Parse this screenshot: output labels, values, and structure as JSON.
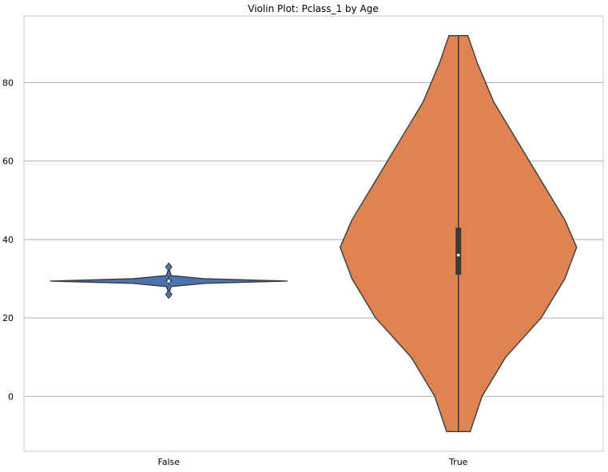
{
  "chart_data": {
    "type": "violin",
    "title": "Violin Plot: Pclass_1 by Age",
    "xlabel": "",
    "ylabel": "",
    "categories": [
      "False",
      "True"
    ],
    "ylim": [
      -14,
      97
    ],
    "yticks": [
      0,
      20,
      40,
      60,
      80
    ],
    "grid": "horizontal",
    "series": [
      {
        "category": "False",
        "color": "#4c72b0",
        "density_profile": [
          {
            "y": 26,
            "w": 0.004
          },
          {
            "y": 27,
            "w": 0.008
          },
          {
            "y": 28,
            "w": 0.02
          },
          {
            "y": 28.8,
            "w": 0.3
          },
          {
            "y": 29.4,
            "w": 1.0
          },
          {
            "y": 30,
            "w": 0.3
          },
          {
            "y": 30.8,
            "w": 0.02
          },
          {
            "y": 32,
            "w": 0.008
          },
          {
            "y": 33,
            "w": 0.004
          }
        ],
        "box": {
          "q1": 29.2,
          "median": 29.4,
          "q3": 29.8
        },
        "whiskers": [
          28.4,
          30.6
        ],
        "outliers": [
          26,
          33
        ]
      },
      {
        "category": "True",
        "color": "#dd8452",
        "density_profile": [
          {
            "y": -9,
            "w": 0.005
          },
          {
            "y": 0,
            "w": 0.01
          },
          {
            "y": 10,
            "w": 0.02
          },
          {
            "y": 20,
            "w": 0.035
          },
          {
            "y": 30,
            "w": 0.045
          },
          {
            "y": 38,
            "w": 0.05
          },
          {
            "y": 45,
            "w": 0.045
          },
          {
            "y": 55,
            "w": 0.035
          },
          {
            "y": 65,
            "w": 0.025
          },
          {
            "y": 75,
            "w": 0.015
          },
          {
            "y": 85,
            "w": 0.008
          },
          {
            "y": 92,
            "w": 0.004
          }
        ],
        "box": {
          "q1": 31,
          "median": 36,
          "q3": 43
        },
        "whiskers": [
          -9,
          92
        ]
      }
    ]
  }
}
